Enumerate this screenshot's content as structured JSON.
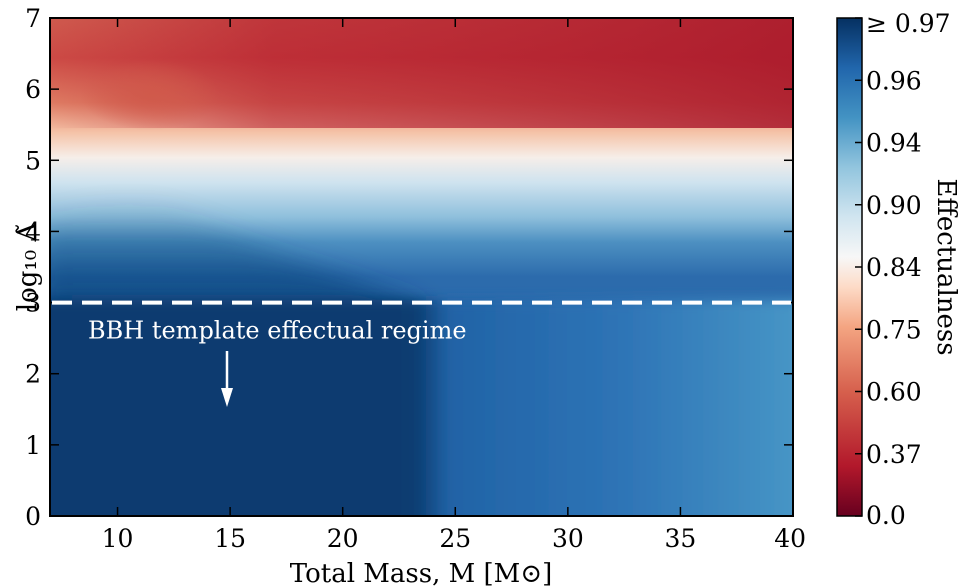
{
  "chart_data": {
    "type": "heatmap",
    "xlabel": "Total Mass, M [M⊙]",
    "ylabel": "log₁₀ Λ̃",
    "xlim": [
      7,
      40
    ],
    "ylim": [
      0,
      7
    ],
    "xticks": [
      10,
      15,
      20,
      25,
      30,
      35,
      40
    ],
    "yticks": [
      0,
      1,
      2,
      3,
      4,
      5,
      6,
      7
    ],
    "colorbar": {
      "label": "Effectualness",
      "tick_labels": [
        "≥ 0.97",
        "0.96",
        "0.94",
        "0.90",
        "0.84",
        "0.75",
        "0.60",
        "0.37",
        "0.0"
      ],
      "colormap": "RdBu",
      "colors": [
        "#67001f",
        "#b2182b",
        "#d6604d",
        "#f4a582",
        "#fddbc7",
        "#f7f7f7",
        "#d1e5f0",
        "#92c5de",
        "#4393c3",
        "#2166ac",
        "#053061"
      ]
    },
    "threshold_line": {
      "y": 3,
      "style": "dashed",
      "color": "#ffffff"
    },
    "annotation": {
      "text": "BBH template effectual regime",
      "arrow_direction": "down"
    },
    "grid": false
  }
}
